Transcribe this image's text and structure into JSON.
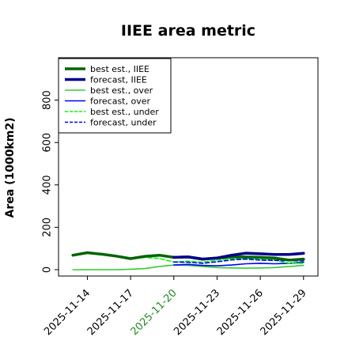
{
  "chart_data": {
    "type": "line",
    "title": "IIEE area metric",
    "xlabel": "",
    "ylabel": "Area (1000km2)",
    "xlim": [
      "2025-11-12",
      "2025-11-30"
    ],
    "ylim": [
      -30,
      1000
    ],
    "yticks": [
      0,
      200,
      400,
      600,
      800
    ],
    "xticks": [
      "2025-11-14",
      "2025-11-17",
      "2025-11-20",
      "2025-11-23",
      "2025-11-26",
      "2025-11-29"
    ],
    "highlight_tick": "2025-11-20",
    "highlight_color": "#228b22",
    "grid": false,
    "legend_position": "top-left",
    "series": [
      {
        "name": "best est., IIEE",
        "color": "#006400",
        "style": "solid",
        "width": "thick",
        "x": [
          "2025-11-13",
          "2025-11-14",
          "2025-11-15",
          "2025-11-16",
          "2025-11-17",
          "2025-11-18",
          "2025-11-19",
          "2025-11-20",
          "2025-11-21",
          "2025-11-22",
          "2025-11-23",
          "2025-11-24",
          "2025-11-25",
          "2025-11-26",
          "2025-11-27",
          "2025-11-28",
          "2025-11-29"
        ],
        "y": [
          68,
          80,
          73,
          64,
          52,
          63,
          68,
          58,
          60,
          50,
          55,
          60,
          60,
          58,
          55,
          45,
          50
        ]
      },
      {
        "name": "forecast, IIEE",
        "color": "#00008b",
        "style": "solid",
        "width": "thick",
        "x": [
          "2025-11-20",
          "2025-11-21",
          "2025-11-22",
          "2025-11-23",
          "2025-11-24",
          "2025-11-25",
          "2025-11-26",
          "2025-11-27",
          "2025-11-28",
          "2025-11-29"
        ],
        "y": [
          58,
          60,
          50,
          55,
          68,
          78,
          75,
          72,
          72,
          77
        ]
      },
      {
        "name": "best est., over",
        "color": "#32cd32",
        "style": "solid",
        "width": "thin",
        "x": [
          "2025-11-13",
          "2025-11-14",
          "2025-11-15",
          "2025-11-16",
          "2025-11-17",
          "2025-11-18",
          "2025-11-19",
          "2025-11-20",
          "2025-11-21",
          "2025-11-22",
          "2025-11-23",
          "2025-11-24",
          "2025-11-25",
          "2025-11-26",
          "2025-11-27",
          "2025-11-28",
          "2025-11-29"
        ],
        "y": [
          0,
          0,
          0,
          0,
          2,
          5,
          15,
          22,
          20,
          15,
          10,
          8,
          7,
          8,
          10,
          15,
          20
        ]
      },
      {
        "name": "forecast, over",
        "color": "#0000ff",
        "style": "solid",
        "width": "thin",
        "x": [
          "2025-11-20",
          "2025-11-21",
          "2025-11-22",
          "2025-11-23",
          "2025-11-24",
          "2025-11-25",
          "2025-11-26",
          "2025-11-27",
          "2025-11-28",
          "2025-11-29"
        ],
        "y": [
          22,
          25,
          20,
          18,
          22,
          28,
          30,
          28,
          30,
          35
        ]
      },
      {
        "name": "best est., under",
        "color": "#00ff00",
        "style": "dashed",
        "width": "thin",
        "x": [
          "2025-11-13",
          "2025-11-14",
          "2025-11-15",
          "2025-11-16",
          "2025-11-17",
          "2025-11-18",
          "2025-11-19",
          "2025-11-20",
          "2025-11-21",
          "2025-11-22",
          "2025-11-23",
          "2025-11-24",
          "2025-11-25",
          "2025-11-26",
          "2025-11-27",
          "2025-11-28",
          "2025-11-29"
        ],
        "y": [
          68,
          80,
          73,
          64,
          50,
          58,
          53,
          36,
          40,
          35,
          45,
          52,
          53,
          50,
          45,
          30,
          30
        ]
      },
      {
        "name": "forecast, under",
        "color": "#0000ff",
        "style": "dashed",
        "width": "thin",
        "x": [
          "2025-11-20",
          "2025-11-21",
          "2025-11-22",
          "2025-11-23",
          "2025-11-24",
          "2025-11-25",
          "2025-11-26",
          "2025-11-27",
          "2025-11-28",
          "2025-11-29"
        ],
        "y": [
          36,
          35,
          30,
          37,
          46,
          50,
          45,
          44,
          42,
          42
        ]
      }
    ]
  }
}
